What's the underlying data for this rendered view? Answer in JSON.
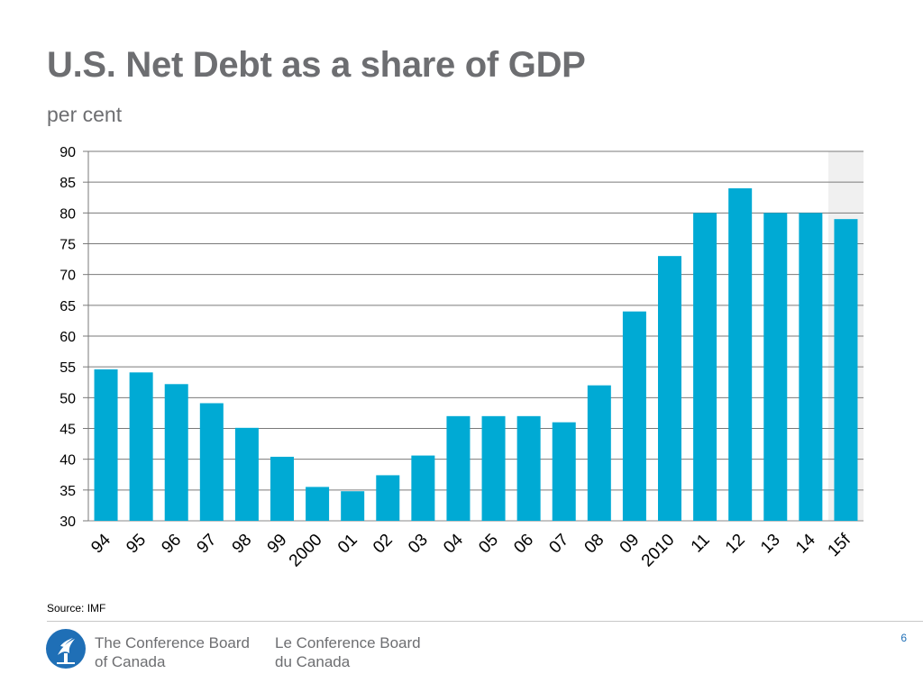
{
  "slide": {
    "title": "U.S. Net Debt as a share of GDP",
    "subtitle": "per cent",
    "source": "Source: IMF",
    "page_number": "6"
  },
  "footer": {
    "org_en_line1": "The Conference Board",
    "org_en_line2": "of Canada",
    "org_fr_line1": "Le Conference Board",
    "org_fr_line2": "du Canada"
  },
  "colors": {
    "bar": "#00aad4",
    "forecast_shade": "#f0f0f0",
    "text": "#6d6e71",
    "logo": "#1f6fb6"
  },
  "chart_data": {
    "type": "bar",
    "title": "U.S. Net Debt as a share of GDP",
    "ylabel": "per cent",
    "xlabel": "",
    "categories": [
      "94",
      "95",
      "96",
      "97",
      "98",
      "99",
      "2000",
      "01",
      "02",
      "03",
      "04",
      "05",
      "06",
      "07",
      "08",
      "09",
      "2010",
      "11",
      "12",
      "13",
      "14",
      "15f"
    ],
    "values": [
      54.6,
      54.1,
      52.2,
      49.1,
      45.1,
      40.4,
      35.5,
      34.8,
      37.4,
      40.6,
      47,
      47,
      47,
      46,
      52,
      64,
      73,
      80,
      84,
      80,
      80,
      79
    ],
    "ylim": [
      30,
      90
    ],
    "yticks": [
      30,
      35,
      40,
      45,
      50,
      55,
      60,
      65,
      70,
      75,
      80,
      85,
      90
    ],
    "grid": true,
    "forecast_categories": [
      "15f"
    ]
  }
}
